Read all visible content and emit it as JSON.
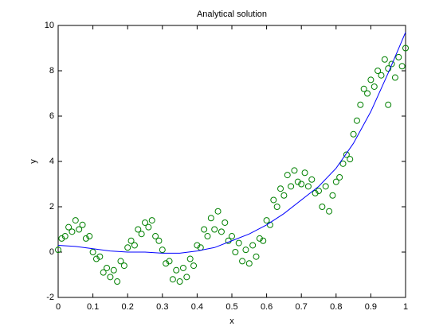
{
  "chart_data": {
    "type": "scatter",
    "title": "Analytical solution",
    "x_label": "x",
    "y_label": "y",
    "xlim": [
      0,
      1
    ],
    "xticks": [
      0,
      0.1,
      0.2,
      0.3,
      0.4,
      0.5,
      0.6,
      0.7,
      0.8,
      0.9,
      1
    ],
    "ylim": [
      -2,
      10
    ],
    "yticks": [
      -2,
      0,
      2,
      4,
      6,
      8,
      10
    ],
    "grid": false,
    "series": [
      {
        "color": "#008000",
        "style": "marker",
        "x": [
          0,
          0.01,
          0.02,
          0.03,
          0.04,
          0.05,
          0.06,
          0.07,
          0.08,
          0.09,
          0.1,
          0.11,
          0.12,
          0.13,
          0.14,
          0.15,
          0.16,
          0.17,
          0.18,
          0.19,
          0.2,
          0.21,
          0.22,
          0.23,
          0.24,
          0.25,
          0.26,
          0.27,
          0.28,
          0.29,
          0.3,
          0.31,
          0.32,
          0.33,
          0.34,
          0.35,
          0.36,
          0.37,
          0.38,
          0.39,
          0.4,
          0.41,
          0.42,
          0.43,
          0.44,
          0.45,
          0.46,
          0.47,
          0.48,
          0.49,
          0.5,
          0.51,
          0.52,
          0.53,
          0.54,
          0.55,
          0.56,
          0.57,
          0.58,
          0.59,
          0.6,
          0.61,
          0.62,
          0.63,
          0.64,
          0.65,
          0.66,
          0.67,
          0.68,
          0.69,
          0.7,
          0.71,
          0.72,
          0.73,
          0.74,
          0.75,
          0.76,
          0.77,
          0.78,
          0.79,
          0.8,
          0.81,
          0.82,
          0.83,
          0.84,
          0.85,
          0.86,
          0.87,
          0.88,
          0.89,
          0.9,
          0.91,
          0.92,
          0.93,
          0.94,
          0.95,
          0.96,
          0.97,
          0.98,
          0.99,
          1,
          0.95
        ],
        "values": [
          0.1,
          0.6,
          0.7,
          1.1,
          0.9,
          1.4,
          1.0,
          1.2,
          0.6,
          0.7,
          0.0,
          -0.3,
          -0.2,
          -0.9,
          -0.7,
          -1.1,
          -0.8,
          -1.3,
          -0.4,
          -0.6,
          0.2,
          0.5,
          0.3,
          1.0,
          0.8,
          1.3,
          1.1,
          1.4,
          0.7,
          0.5,
          0.1,
          -0.5,
          -0.4,
          -1.2,
          -0.8,
          -1.3,
          -0.7,
          -1.1,
          -0.3,
          -0.6,
          0.3,
          0.2,
          1.0,
          0.7,
          1.5,
          1.0,
          1.8,
          0.9,
          1.3,
          0.5,
          0.7,
          0.0,
          0.4,
          -0.4,
          0.1,
          -0.5,
          0.3,
          -0.2,
          0.6,
          0.5,
          1.4,
          1.2,
          2.3,
          2.0,
          2.8,
          2.5,
          3.4,
          2.9,
          3.6,
          3.1,
          3.0,
          3.5,
          2.9,
          3.2,
          2.6,
          2.7,
          2.0,
          2.9,
          1.8,
          2.5,
          3.1,
          3.3,
          3.9,
          4.3,
          4.1,
          5.2,
          5.8,
          6.5,
          7.2,
          7.0,
          7.6,
          7.3,
          8.0,
          7.8,
          8.5,
          8.1,
          8.3,
          7.7,
          8.6,
          8.2,
          9.0,
          6.5
        ]
      },
      {
        "color": "#0000ff",
        "style": "line",
        "x": [
          0,
          0.05,
          0.1,
          0.15,
          0.2,
          0.25,
          0.3,
          0.35,
          0.4,
          0.45,
          0.5,
          0.55,
          0.6,
          0.65,
          0.7,
          0.75,
          0.8,
          0.85,
          0.9,
          0.95,
          1
        ],
        "values": [
          0.3,
          0.25,
          0.15,
          0.05,
          0.0,
          0.0,
          -0.05,
          -0.05,
          0.05,
          0.2,
          0.5,
          0.8,
          1.2,
          1.7,
          2.3,
          2.9,
          3.7,
          4.8,
          6.2,
          7.9,
          9.7
        ]
      }
    ]
  }
}
